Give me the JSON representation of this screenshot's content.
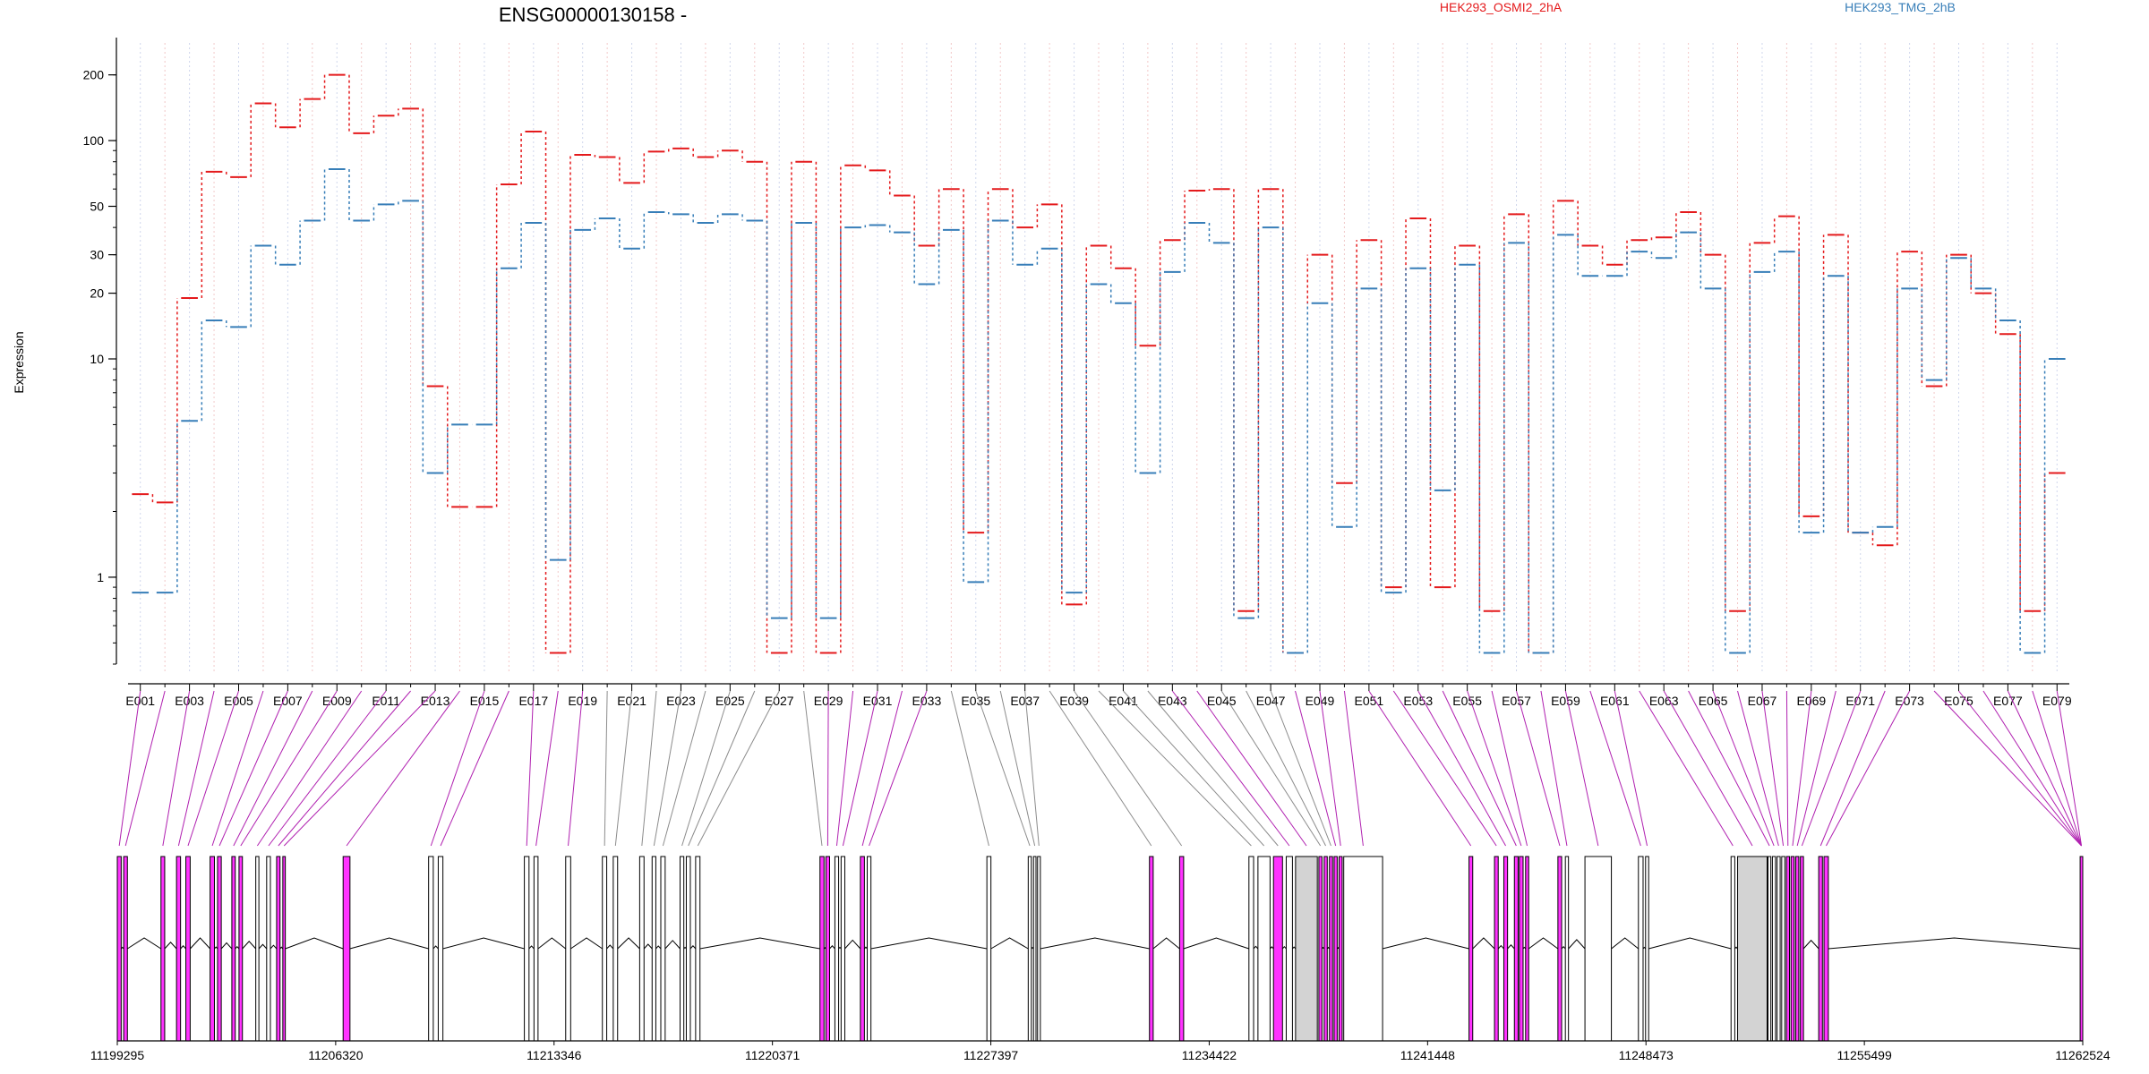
{
  "chart_data": {
    "type": "line",
    "title": "ENSG00000130158 -",
    "xlabel": "",
    "ylabel": "Expression",
    "yscale": "log",
    "ylim": [
      0.4,
      280
    ],
    "yticks": [
      1,
      10,
      20,
      30,
      50,
      100,
      200
    ],
    "grid": "vertical dotted lines at each exon bin",
    "legend_position": "top",
    "series": [
      {
        "name": "HEK293_OSMI2_2hA",
        "color": "#e41a1c",
        "values": [
          2.4,
          2.2,
          19,
          72,
          68,
          148,
          115,
          155,
          200,
          108,
          130,
          140,
          7.5,
          2.1,
          2.1,
          63,
          110,
          0.45,
          86,
          84,
          64,
          89,
          92,
          84,
          90,
          80,
          0.45,
          80,
          0.45,
          77,
          73,
          56,
          33,
          60,
          1.6,
          60,
          40,
          51,
          0.75,
          33,
          26,
          11.5,
          35,
          59,
          60,
          0.7,
          60,
          0.45,
          30,
          2.7,
          35,
          0.9,
          44,
          0.9,
          33,
          0.7,
          46,
          0.45,
          53,
          33,
          27,
          35,
          36,
          47,
          30,
          0.7,
          34,
          45,
          1.9,
          37,
          1.6,
          1.4,
          31,
          7.5,
          30,
          20,
          13,
          0.7,
          3.0
        ],
        "values_2": []
      },
      {
        "name": "HEK293_TMG_2hB",
        "color": "#377eb8",
        "values": [
          0.85,
          0.85,
          5.2,
          15,
          14,
          33,
          27,
          43,
          74,
          43,
          51,
          53,
          3.0,
          5.0,
          5.0,
          26,
          42,
          1.2,
          39,
          44,
          32,
          47,
          46,
          42,
          46,
          43,
          0.65,
          42,
          0.65,
          40,
          41,
          38,
          22,
          39,
          0.95,
          43,
          27,
          32,
          0.85,
          22,
          18,
          3.0,
          25,
          42,
          34,
          0.65,
          40,
          0.45,
          18,
          1.7,
          21,
          0.85,
          26,
          2.5,
          27,
          0.45,
          34,
          0.45,
          37,
          24,
          24,
          31,
          29,
          38,
          21,
          0.45,
          25,
          31,
          1.6,
          24,
          1.6,
          1.7,
          21,
          8.0,
          29,
          21,
          15,
          0.45,
          10
        ]
      }
    ],
    "exons": [
      "E001",
      "E002",
      "E003",
      "E004",
      "E005",
      "E006",
      "E007",
      "E008",
      "E009",
      "E010",
      "E011",
      "E012",
      "E013",
      "E014",
      "E015",
      "E016",
      "E017",
      "E018",
      "E019",
      "E020",
      "E021",
      "E022",
      "E023",
      "E024",
      "E025",
      "E026",
      "E027",
      "E028",
      "E029",
      "E030",
      "E031",
      "E032",
      "E033",
      "E034",
      "E035",
      "E036",
      "E037",
      "E038",
      "E039",
      "E040",
      "E041",
      "E042",
      "E043",
      "E044",
      "E045",
      "E046",
      "E047",
      "E048",
      "E049",
      "E050",
      "E051",
      "E052",
      "E053",
      "E054",
      "E055",
      "E056",
      "E057",
      "E058",
      "E059",
      "E060",
      "E061",
      "E062",
      "E063",
      "E064",
      "E065",
      "E066",
      "E067",
      "E068",
      "E069",
      "E070",
      "E071",
      "E072",
      "E073",
      "E074",
      "E075",
      "E076",
      "E077",
      "E078",
      "E079"
    ],
    "x_tick_labels": [
      "E001",
      "E003",
      "E005",
      "E007",
      "E009",
      "E011",
      "E013",
      "E015",
      "E017",
      "E019",
      "E021",
      "E023",
      "E025",
      "E027",
      "E029",
      "E031",
      "E033",
      "E035",
      "E037",
      "E039",
      "E041",
      "E043",
      "E045",
      "E047",
      "E049",
      "E051",
      "E053",
      "E055",
      "E057",
      "E059",
      "E061",
      "E063",
      "E065",
      "E067",
      "E069",
      "E071",
      "E073",
      "E075",
      "E077",
      "E079"
    ],
    "genomic_axis": {
      "range": [
        11199295,
        11262524
      ],
      "ticks": [
        11199295,
        11206320,
        11213346,
        11220371,
        11227397,
        11234422,
        11241448,
        11248473,
        11255499,
        11262524
      ]
    },
    "significant_exons": [
      "E001",
      "E002",
      "E003",
      "E004",
      "E005",
      "E006",
      "E007",
      "E008",
      "E009",
      "E010",
      "E011",
      "E012",
      "E013",
      "E014",
      "E015",
      "E016",
      "E017",
      "E018",
      "E019",
      "E029",
      "E030",
      "E031",
      "E032",
      "E033",
      "E043",
      "E044",
      "E048",
      "E049",
      "E050",
      "E051",
      "E052",
      "E053",
      "E054",
      "E055",
      "E056",
      "E057",
      "E058",
      "E059",
      "E060",
      "E061",
      "E062",
      "E063",
      "E064",
      "E065",
      "E066",
      "E067",
      "E068",
      "E069",
      "E070",
      "E071",
      "E072",
      "E073",
      "E074",
      "E075",
      "E076",
      "E077",
      "E078",
      "E079"
    ],
    "gene_model_exons": [
      [
        11199295,
        11199420,
        "sig"
      ],
      [
        11199500,
        11199620,
        "sig"
      ],
      [
        11200700,
        11200820,
        "sig"
      ],
      [
        11201200,
        11201330,
        "sig"
      ],
      [
        11201500,
        11201640,
        "sig"
      ],
      [
        11202280,
        11202420,
        "sig"
      ],
      [
        11202520,
        11202640,
        "sig"
      ],
      [
        11202980,
        11203090,
        "sig"
      ],
      [
        11203210,
        11203320,
        "sig"
      ],
      [
        11203750,
        11203850,
        "none"
      ],
      [
        11204100,
        11204220,
        "none"
      ],
      [
        11204420,
        11204530,
        "sig"
      ],
      [
        11204620,
        11204700,
        "sig"
      ],
      [
        11206560,
        11206780,
        "sig"
      ],
      [
        11209310,
        11209460,
        "none"
      ],
      [
        11209620,
        11209770,
        "none"
      ],
      [
        11212390,
        11212540,
        "none"
      ],
      [
        11212700,
        11212830,
        "none"
      ],
      [
        11213720,
        11213880,
        "none"
      ],
      [
        11214900,
        11215040,
        "none"
      ],
      [
        11215250,
        11215390,
        "none"
      ],
      [
        11216100,
        11216240,
        "none"
      ],
      [
        11216500,
        11216620,
        "none"
      ],
      [
        11216780,
        11216920,
        "none"
      ],
      [
        11217400,
        11217520,
        "none"
      ],
      [
        11217600,
        11217730,
        "none"
      ],
      [
        11217900,
        11218040,
        "none"
      ],
      [
        11221900,
        11222030,
        "sig"
      ],
      [
        11222090,
        11222210,
        "sig"
      ],
      [
        11222380,
        11222500,
        "none"
      ],
      [
        11222580,
        11222700,
        "none"
      ],
      [
        11223200,
        11223330,
        "sig"
      ],
      [
        11223420,
        11223540,
        "none"
      ],
      [
        11227270,
        11227400,
        "none"
      ],
      [
        11228600,
        11228700,
        "none"
      ],
      [
        11228770,
        11228850,
        "none"
      ],
      [
        11228900,
        11228990,
        "none"
      ],
      [
        11232500,
        11232620,
        "sig"
      ],
      [
        11233470,
        11233600,
        "sig"
      ],
      [
        11235700,
        11235850,
        "none"
      ],
      [
        11235990,
        11236380,
        "none"
      ],
      [
        11236490,
        11236780,
        "sig"
      ],
      [
        11236900,
        11237100,
        "none"
      ],
      [
        11237200,
        11237900,
        "gray"
      ],
      [
        11237950,
        11238050,
        "sig"
      ],
      [
        11238120,
        11238220,
        "sig"
      ],
      [
        11238290,
        11238390,
        "sig"
      ],
      [
        11238440,
        11238540,
        "sig"
      ],
      [
        11238600,
        11238700,
        "sig"
      ],
      [
        11238750,
        11240000,
        "none"
      ],
      [
        11242780,
        11242900,
        "sig"
      ],
      [
        11243600,
        11243720,
        "sig"
      ],
      [
        11243900,
        11244020,
        "sig"
      ],
      [
        11244240,
        11244360,
        "sig"
      ],
      [
        11244400,
        11244520,
        "sig"
      ],
      [
        11244600,
        11244700,
        "sig"
      ],
      [
        11245640,
        11245760,
        "sig"
      ],
      [
        11245880,
        11245980,
        "none"
      ],
      [
        11246510,
        11247360,
        "none"
      ],
      [
        11248230,
        11248380,
        "none"
      ],
      [
        11248460,
        11248560,
        "none"
      ],
      [
        11251210,
        11251330,
        "none"
      ],
      [
        11251420,
        11252370,
        "gray"
      ],
      [
        11252400,
        11252490,
        "none"
      ],
      [
        11252540,
        11252640,
        "none"
      ],
      [
        11252690,
        11252790,
        "none"
      ],
      [
        11252840,
        11252940,
        "none"
      ],
      [
        11252990,
        11253090,
        "sig"
      ],
      [
        11253140,
        11253240,
        "sig"
      ],
      [
        11253290,
        11253390,
        "sig"
      ],
      [
        11253440,
        11253540,
        "sig"
      ],
      [
        11254030,
        11254150,
        "sig"
      ],
      [
        11254200,
        11254340,
        "sig"
      ],
      [
        11262440,
        11262524,
        "sig"
      ]
    ]
  }
}
